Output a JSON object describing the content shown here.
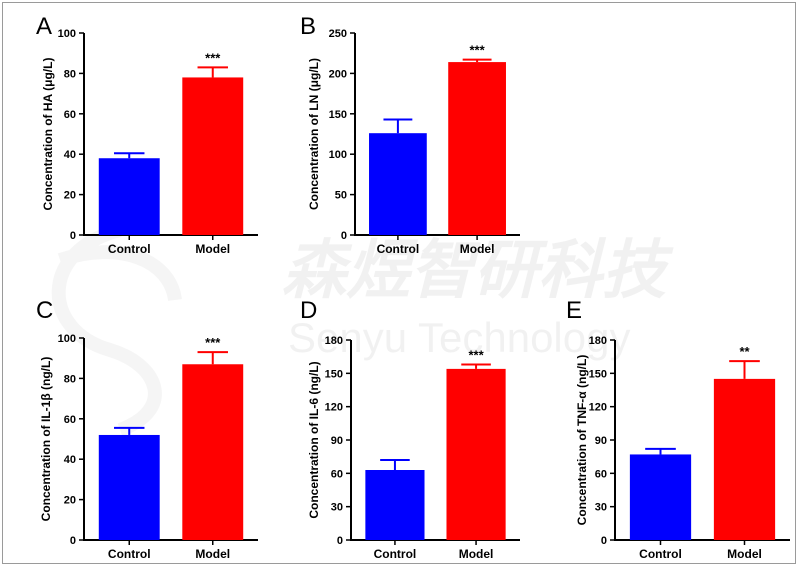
{
  "watermark": {
    "cn_text": "森煜智研科技",
    "en_text": "Senyu Technology"
  },
  "colors": {
    "control": "#0000ff",
    "model": "#ff0000",
    "axis": "#000000"
  },
  "chart_data": [
    {
      "panel": "A",
      "type": "bar",
      "ylabel": "Concentration of HA (μg/L)",
      "categories": [
        "Control",
        "Model"
      ],
      "values": [
        38,
        78
      ],
      "errors": [
        2.5,
        5
      ],
      "significance": [
        "",
        "***"
      ],
      "ylim": [
        0,
        100
      ],
      "yticks": [
        0,
        20,
        40,
        60,
        80,
        100
      ]
    },
    {
      "panel": "B",
      "type": "bar",
      "ylabel": "Concentration of LN (μg/L)",
      "categories": [
        "Control",
        "Model"
      ],
      "values": [
        126,
        214
      ],
      "errors": [
        17,
        3
      ],
      "significance": [
        "",
        "***"
      ],
      "ylim": [
        0,
        250
      ],
      "yticks": [
        0,
        50,
        100,
        150,
        200,
        250
      ]
    },
    {
      "panel": "C",
      "type": "bar",
      "ylabel": "Concentration of IL-1β (ng/L)",
      "categories": [
        "Control",
        "Model"
      ],
      "values": [
        52,
        87
      ],
      "errors": [
        3.5,
        6
      ],
      "significance": [
        "",
        "***"
      ],
      "ylim": [
        0,
        100
      ],
      "yticks": [
        0,
        20,
        40,
        60,
        80,
        100
      ]
    },
    {
      "panel": "D",
      "type": "bar",
      "ylabel": "Concentration of IL-6 (ng/L)",
      "categories": [
        "Control",
        "Model"
      ],
      "values": [
        63,
        154
      ],
      "errors": [
        9,
        4
      ],
      "significance": [
        "",
        "***"
      ],
      "ylim": [
        0,
        180
      ],
      "yticks": [
        0,
        30,
        60,
        90,
        120,
        150,
        180
      ]
    },
    {
      "panel": "E",
      "type": "bar",
      "ylabel": "Concentration of TNF-α (ng/L)",
      "categories": [
        "Control",
        "Model"
      ],
      "values": [
        77,
        145
      ],
      "errors": [
        5,
        16
      ],
      "significance": [
        "",
        "**"
      ],
      "ylim": [
        0,
        180
      ],
      "yticks": [
        0,
        30,
        60,
        90,
        120,
        150,
        180
      ]
    }
  ]
}
